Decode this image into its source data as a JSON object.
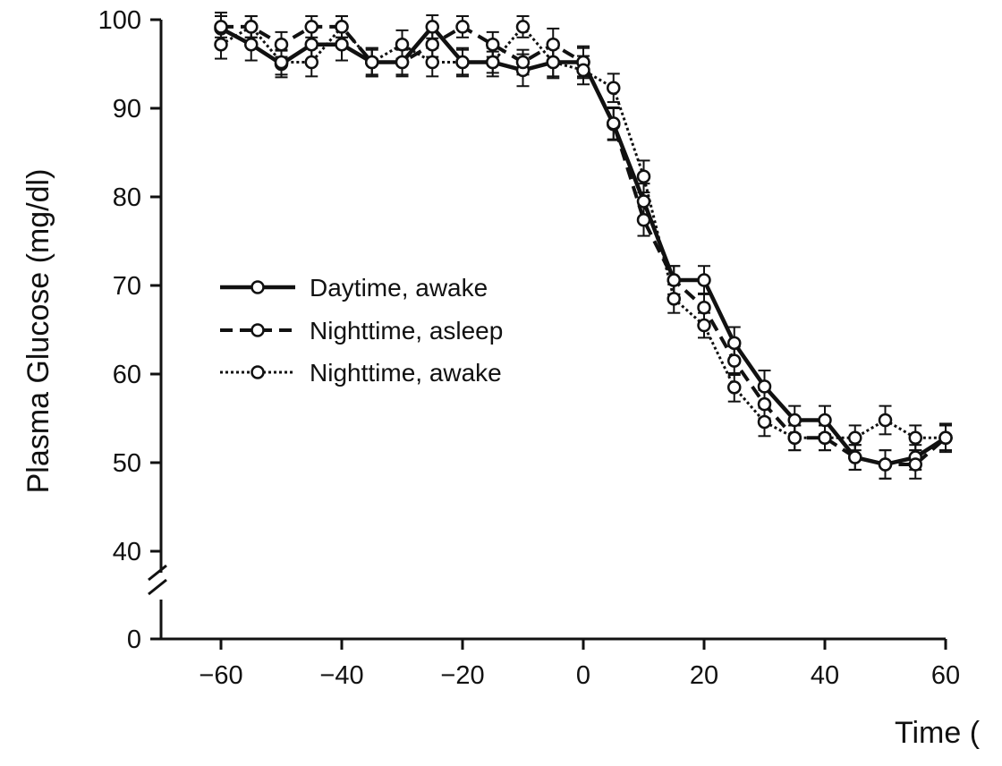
{
  "chart_data": {
    "type": "line",
    "title": "",
    "xlabel": "Time (",
    "ylabel": "Plasma Glucose (mg/dl)",
    "xlim": [
      -70,
      60
    ],
    "ylim_display": [
      40,
      100
    ],
    "y_break": {
      "below": 40,
      "zero_label": "0"
    },
    "x_ticks": [
      {
        "value": -60,
        "label": "−60"
      },
      {
        "value": -40,
        "label": "−40"
      },
      {
        "value": -20,
        "label": "−20"
      },
      {
        "value": 0,
        "label": "0"
      },
      {
        "value": 20,
        "label": "20"
      },
      {
        "value": 40,
        "label": "40"
      },
      {
        "value": 60,
        "label": "60"
      }
    ],
    "y_ticks": [
      {
        "value": 100,
        "label": "100"
      },
      {
        "value": 90,
        "label": "90"
      },
      {
        "value": 80,
        "label": "80"
      },
      {
        "value": 70,
        "label": "70"
      },
      {
        "value": 60,
        "label": "60"
      },
      {
        "value": 50,
        "label": "50"
      },
      {
        "value": 40,
        "label": "40"
      }
    ],
    "grid": false,
    "legend_position": "middle-left",
    "x": [
      -60,
      -55,
      -50,
      -45,
      -40,
      -35,
      -30,
      -25,
      -20,
      -15,
      -10,
      -5,
      0,
      5,
      10,
      15,
      20,
      25,
      30,
      35,
      40,
      45,
      50,
      55,
      60
    ],
    "series": [
      {
        "name": "Daytime, awake",
        "style": "solid",
        "values": [
          99,
          97.2,
          95,
          97.2,
          97.2,
          95.2,
          95.2,
          99.2,
          95.2,
          95.2,
          94.3,
          95.2,
          95.2,
          88.2,
          79.5,
          70.6,
          70.6,
          63.5,
          58.6,
          54.8,
          54.8,
          50.6,
          49.8,
          50.6,
          52.8
        ],
        "error": [
          1.8,
          1.8,
          1.5,
          1.8,
          1.8,
          1.6,
          1.6,
          1.3,
          1.6,
          1.6,
          1.8,
          1.8,
          1.8,
          1.8,
          2.0,
          1.6,
          1.6,
          1.8,
          1.8,
          1.6,
          1.6,
          1.4,
          1.6,
          1.4,
          1.6
        ]
      },
      {
        "name": "Nighttime, asleep",
        "style": "dashed",
        "values": [
          99.2,
          99.2,
          97.2,
          99.2,
          99.2,
          95.2,
          95.2,
          97.2,
          99.2,
          97.2,
          95.2,
          97.2,
          95.2,
          88.3,
          77.4,
          70.6,
          67.5,
          61.5,
          56.6,
          52.8,
          52.8,
          50.6,
          49.8,
          49.8,
          52.8
        ],
        "error": [
          1.2,
          1.2,
          1.4,
          1.2,
          1.2,
          1.4,
          1.4,
          1.4,
          1.2,
          1.4,
          1.4,
          1.8,
          1.6,
          1.8,
          1.8,
          1.6,
          1.6,
          1.6,
          1.6,
          1.4,
          1.4,
          1.4,
          1.6,
          1.6,
          1.4
        ]
      },
      {
        "name": "Nighttime, awake",
        "style": "dotted",
        "values": [
          97.2,
          99.2,
          95.2,
          95.2,
          99.2,
          95.2,
          97.2,
          95.2,
          95.2,
          95.2,
          99.2,
          95.2,
          94.3,
          92.3,
          82.3,
          68.5,
          65.5,
          58.5,
          54.6,
          52.8,
          52.8,
          52.8,
          54.8,
          52.8,
          52.8
        ],
        "error": [
          1.6,
          1.2,
          1.4,
          1.6,
          1.2,
          1.6,
          1.6,
          1.6,
          1.4,
          1.2,
          1.2,
          1.6,
          1.6,
          1.6,
          1.8,
          1.6,
          1.4,
          1.6,
          1.6,
          1.4,
          1.4,
          1.4,
          1.6,
          1.4,
          1.4
        ]
      }
    ]
  }
}
